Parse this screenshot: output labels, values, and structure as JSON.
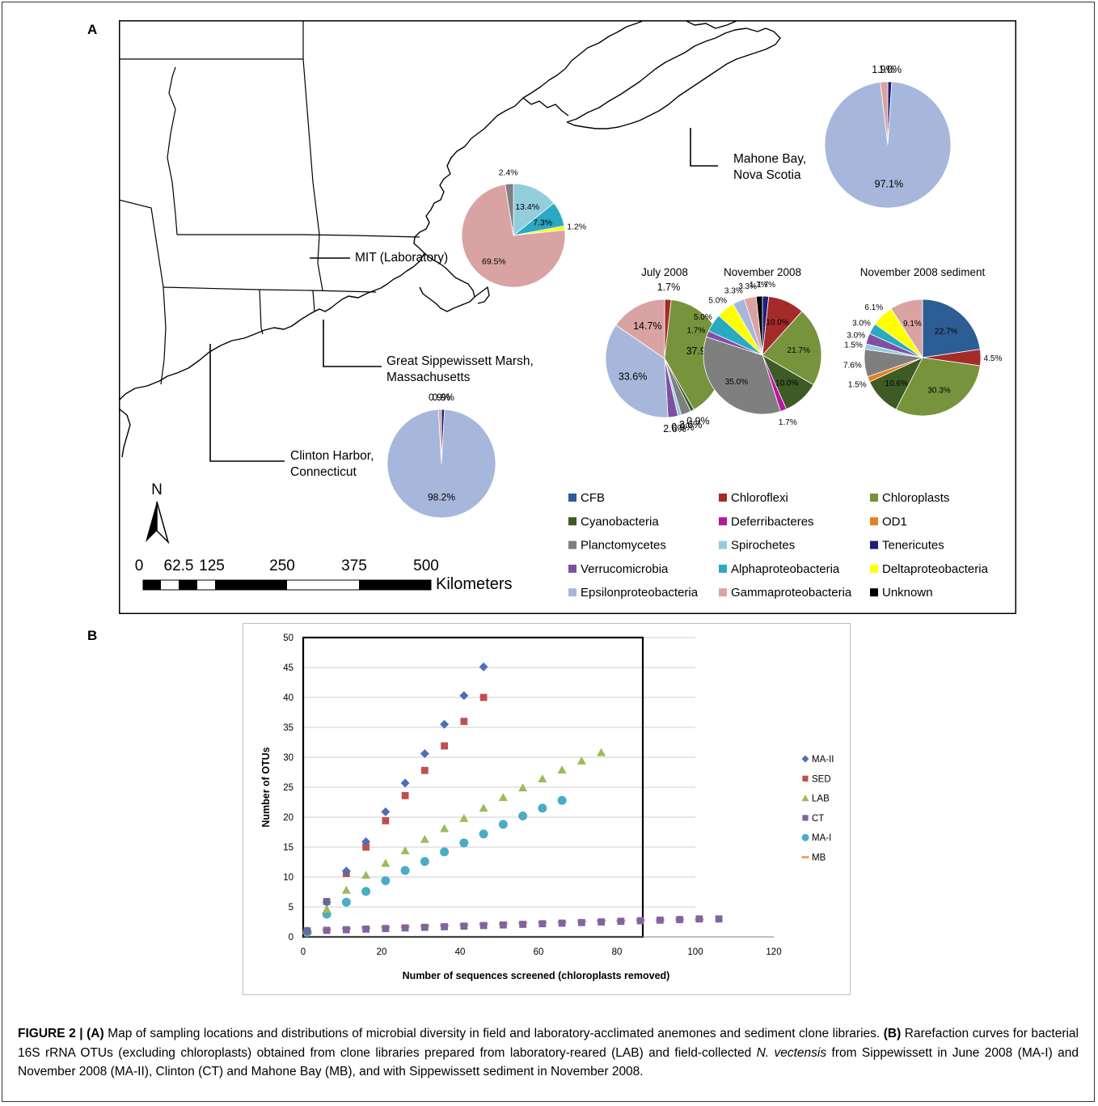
{
  "panel_a_letter": "A",
  "panel_b_letter": "B",
  "map": {
    "locations": [
      {
        "lines": [
          "Mahone Bay,",
          "Nova Scotia"
        ]
      },
      {
        "lines": [
          "MIT (Laboratory)"
        ]
      },
      {
        "lines": [
          "Great Sippewissett Marsh,",
          "Massachusetts"
        ]
      },
      {
        "lines": [
          "Clinton Harbor,",
          "Connecticut"
        ]
      }
    ],
    "north": "N",
    "scale_ticks": [
      "0",
      "62.5",
      "125",
      "250",
      "375",
      "500"
    ],
    "scale_unit": "Kilometers"
  },
  "colors": {
    "CFB": "#2d5d95",
    "Chloroflexi": "#a52a2a",
    "Chloroplasts": "#77933c",
    "Cyanobacteria": "#3e5a25",
    "Deferribacteres": "#b5179e",
    "OD1": "#e2811e",
    "Planctomycetes": "#7f7f7f",
    "Spirochetes": "#92cddc",
    "Tenericutes": "#1f1f7a",
    "Verrucomicrobia": "#7f4fa3",
    "Alphaproteobacteria": "#2aa9c2",
    "Deltaproteobacteria": "#ffff00",
    "Epsilonproteobacteria": "#a6b7db",
    "Gammaproteobacteria": "#d9a3a3",
    "Unknown": "#000000"
  },
  "legend": {
    "items": [
      "CFB",
      "Chloroflexi",
      "Chloroplasts",
      "Cyanobacteria",
      "Deferribacteres",
      "OD1",
      "Planctomycetes",
      "Spirochetes",
      "Tenericutes",
      "Verrucomicrobia",
      "Alphaproteobacteria",
      "Deltaproteobacteria",
      "Epsilonproteobacteria",
      "Gammaproteobacteria",
      "Unknown"
    ]
  },
  "pies": [
    {
      "id": "mahone",
      "title": "",
      "slices": [
        {
          "group": "Tenericutes",
          "value": 1.0,
          "label": "1.0%"
        },
        {
          "group": "Epsilonproteobacteria",
          "value": 97.1,
          "label": "97.1%"
        },
        {
          "group": "Gammaproteobacteria",
          "value": 1.9,
          "label": "1.9%"
        }
      ]
    },
    {
      "id": "lab",
      "title": "",
      "slices": [
        {
          "group": "Spirochetes",
          "value": 13.4,
          "label": "13.4%"
        },
        {
          "group": "Alphaproteobacteria",
          "value": 7.3,
          "label": "7.3%"
        },
        {
          "group": "Deltaproteobacteria",
          "value": 1.2,
          "label": "1.2%"
        },
        {
          "group": "Gammaproteobacteria",
          "value": 69.5,
          "label": "69.5%"
        },
        {
          "group": "Planctomycetes",
          "value": 2.4,
          "label": "2.4%"
        }
      ]
    },
    {
      "id": "july2008",
      "title": "July 2008",
      "slices": [
        {
          "group": "Chloroflexi",
          "value": 1.7,
          "label": "1.7%"
        },
        {
          "group": "Chloroplasts",
          "value": 37.9,
          "label": "37.9%"
        },
        {
          "group": "Cyanobacteria",
          "value": 0.9,
          "label": "0.9%"
        },
        {
          "group": "Planctomycetes",
          "value": 2.6,
          "label": "2.6%"
        },
        {
          "group": "Spirochetes",
          "value": 0.9,
          "label": "0.9%"
        },
        {
          "group": "Verrucomicrobia",
          "value": 2.6,
          "label": "2.6%"
        },
        {
          "group": "Epsilonproteobacteria",
          "value": 33.6,
          "label": "33.6%"
        },
        {
          "group": "Gammaproteobacteria",
          "value": 14.7,
          "label": "14.7%"
        }
      ]
    },
    {
      "id": "nov2008",
      "title": "November 2008",
      "slices": [
        {
          "group": "Tenericutes",
          "value": 1.7,
          "label": "1.7%"
        },
        {
          "group": "Chloroflexi",
          "value": 10.0,
          "label": "10.0%"
        },
        {
          "group": "Chloroplasts",
          "value": 21.7,
          "label": "21.7%"
        },
        {
          "group": "Cyanobacteria",
          "value": 10.0,
          "label": "10.0%"
        },
        {
          "group": "Deferribacteres",
          "value": 1.7,
          "label": "1.7%"
        },
        {
          "group": "Planctomycetes",
          "value": 35.0,
          "label": "35.0%"
        },
        {
          "group": "Verrucomicrobia",
          "value": 1.7,
          "label": "1.7%"
        },
        {
          "group": "Alphaproteobacteria",
          "value": 5.0,
          "label": "5.0%"
        },
        {
          "group": "Deltaproteobacteria",
          "value": 5.0,
          "label": "5.0%"
        },
        {
          "group": "Epsilonproteobacteria",
          "value": 3.3,
          "label": "3.3%"
        },
        {
          "group": "Gammaproteobacteria",
          "value": 3.3,
          "label": "3.3%"
        },
        {
          "group": "Unknown",
          "value": 1.7,
          "label": "1.7%"
        }
      ]
    },
    {
      "id": "nov2008sed",
      "title": "November 2008 sediment",
      "slices": [
        {
          "group": "CFB",
          "value": 22.7,
          "label": "22.7%"
        },
        {
          "group": "Chloroflexi",
          "value": 4.5,
          "label": "4.5%"
        },
        {
          "group": "Chloroplasts",
          "value": 30.3,
          "label": "30.3%"
        },
        {
          "group": "Cyanobacteria",
          "value": 10.6,
          "label": "10.6%"
        },
        {
          "group": "OD1",
          "value": 1.5,
          "label": "1.5%"
        },
        {
          "group": "Planctomycetes",
          "value": 7.6,
          "label": "7.6%"
        },
        {
          "group": "Spirochetes",
          "value": 1.5,
          "label": "1.5%"
        },
        {
          "group": "Verrucomicrobia",
          "value": 3.0,
          "label": "3.0%"
        },
        {
          "group": "Alphaproteobacteria",
          "value": 3.0,
          "label": "3.0%"
        },
        {
          "group": "Deltaproteobacteria",
          "value": 6.1,
          "label": "6.1%"
        },
        {
          "group": "Gammaproteobacteria",
          "value": 9.1,
          "label": "9.1%"
        }
      ]
    },
    {
      "id": "clinton",
      "title": "",
      "slices": [
        {
          "group": "Tenericutes",
          "value": 0.9,
          "label": "0.9%"
        },
        {
          "group": "Epsilonproteobacteria",
          "value": 98.2,
          "label": "98.2%"
        },
        {
          "group": "Gammaproteobacteria",
          "value": 0.9,
          "label": "0.9%"
        }
      ]
    }
  ],
  "chart_data": {
    "type": "scatter",
    "title": "",
    "xlabel": "Number of sequences screened (chloroplasts removed)",
    "ylabel": "Number of OTUs",
    "xlim": [
      0,
      120
    ],
    "ylim": [
      0,
      50
    ],
    "xticks": [
      0,
      20,
      40,
      60,
      80,
      100,
      120
    ],
    "yticks": [
      0,
      5,
      10,
      15,
      20,
      25,
      30,
      35,
      40,
      45,
      50
    ],
    "grid": "horizontal",
    "legend_position": "right",
    "series": [
      {
        "name": "MA-II",
        "marker": "diamond",
        "color": "#4f6fb5",
        "x": [
          1,
          6,
          11,
          16,
          21,
          26,
          31,
          36,
          41,
          46
        ],
        "y": [
          1.0,
          5.8,
          11.0,
          15.9,
          20.9,
          25.7,
          30.6,
          35.5,
          40.3,
          45.1
        ]
      },
      {
        "name": "SED",
        "marker": "square",
        "color": "#c0504d",
        "x": [
          1,
          6,
          11,
          16,
          21,
          26,
          31,
          36,
          41,
          46
        ],
        "y": [
          1.0,
          5.9,
          10.6,
          15.0,
          19.4,
          23.6,
          27.8,
          31.9,
          36.0,
          40.0
        ]
      },
      {
        "name": "LAB",
        "marker": "triangle",
        "color": "#9bbb59",
        "x": [
          1,
          6,
          11,
          16,
          21,
          26,
          31,
          36,
          41,
          46,
          51,
          56,
          61,
          66,
          71,
          76
        ],
        "y": [
          1.0,
          4.6,
          7.8,
          10.3,
          12.3,
          14.4,
          16.3,
          18.1,
          19.8,
          21.5,
          23.3,
          24.9,
          26.4,
          27.9,
          29.4,
          30.8
        ]
      },
      {
        "name": "CT",
        "marker": "square",
        "color": "#8064a2",
        "x": [
          1,
          6,
          11,
          16,
          21,
          26,
          31,
          36,
          41,
          46,
          51,
          56,
          61,
          66,
          71,
          76,
          81,
          86,
          91,
          96,
          101,
          106
        ],
        "y": [
          1.0,
          1.1,
          1.2,
          1.3,
          1.4,
          1.5,
          1.6,
          1.7,
          1.8,
          1.9,
          2.0,
          2.1,
          2.2,
          2.3,
          2.4,
          2.5,
          2.6,
          2.7,
          2.8,
          2.9,
          3.0,
          3.0
        ]
      },
      {
        "name": "MA-I",
        "marker": "circle",
        "color": "#4bacc6",
        "x": [
          1,
          6,
          11,
          16,
          21,
          26,
          31,
          36,
          41,
          46,
          51,
          56,
          61,
          66
        ],
        "y": [
          0.8,
          3.8,
          5.8,
          7.6,
          9.4,
          11.1,
          12.6,
          14.2,
          15.7,
          17.2,
          18.8,
          20.2,
          21.5,
          22.8
        ]
      },
      {
        "name": "MB",
        "marker": "dash",
        "color": "#f79646",
        "x": [
          1,
          6,
          11,
          16,
          21,
          26,
          31,
          36,
          41,
          46,
          51,
          56,
          61,
          66,
          71,
          76,
          81,
          86,
          91,
          96,
          101
        ],
        "y": [
          0.6,
          1.2,
          1.4,
          1.5,
          1.6,
          1.7,
          1.8,
          1.9,
          2.0,
          2.1,
          2.2,
          2.3,
          2.4,
          2.5,
          2.6,
          2.7,
          2.7,
          2.8,
          2.8,
          2.9,
          2.9
        ]
      }
    ]
  },
  "caption": {
    "label": "FIGURE 2 | ",
    "a_tag": "(A)",
    "a_text": " Map of sampling locations and distributions of microbial diversity in field and laboratory-acclimated anemones and sediment clone libraries. ",
    "b_tag": "(B)",
    "b_text_1": " Rarefaction curves for bacterial 16S rRNA OTUs (excluding chloroplasts) obtained from clone libraries prepared from laboratory-reared (LAB) and field-collected ",
    "species": "N. vectensis",
    "b_text_2": " from Sippewissett in June 2008 (MA-I) and November 2008 (MA-II), Clinton (CT) and Mahone Bay (MB), and with Sippewissett sediment in November 2008."
  }
}
